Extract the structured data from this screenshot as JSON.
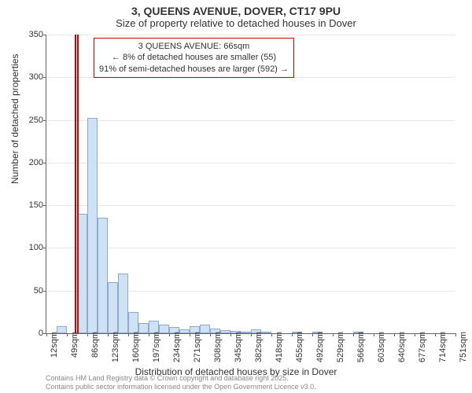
{
  "title": "3, QUEENS AVENUE, DOVER, CT17 9PU",
  "subtitle": "Size of property relative to detached houses in Dover",
  "ylabel": "Number of detached properties",
  "xlabel": "Distribution of detached houses by size in Dover",
  "chart": {
    "type": "histogram",
    "ylim": [
      0,
      350
    ],
    "ytick_step": 50,
    "yticks": [
      0,
      50,
      100,
      150,
      200,
      250,
      300,
      350
    ],
    "x_start": 12,
    "x_bin_width": 18.5,
    "x_tick_labels": [
      "12sqm",
      "49sqm",
      "86sqm",
      "123sqm",
      "160sqm",
      "197sqm",
      "234sqm",
      "271sqm",
      "308sqm",
      "345sqm",
      "382sqm",
      "418sqm",
      "455sqm",
      "492sqm",
      "529sqm",
      "566sqm",
      "603sqm",
      "640sqm",
      "677sqm",
      "714sqm",
      "751sqm"
    ],
    "x_tick_positions_bins": [
      0,
      2,
      4,
      6,
      8,
      10,
      12,
      14,
      16,
      18,
      20,
      22,
      24,
      26,
      28,
      30,
      32,
      34,
      36,
      38,
      40
    ],
    "values": [
      0,
      8,
      0,
      140,
      252,
      135,
      60,
      70,
      25,
      12,
      15,
      10,
      7,
      5,
      8,
      10,
      6,
      4,
      3,
      2,
      5,
      2,
      0,
      0,
      1,
      0,
      1,
      0,
      0,
      0,
      2,
      0,
      0,
      0,
      0,
      0,
      0,
      0,
      0,
      0
    ],
    "bar_fill": "#cfe2f3",
    "bar_border": "#8faad0",
    "grid_color": "#e8e8e8",
    "axis_color": "#666666",
    "marker_value": 66,
    "marker_color": "#cc0000",
    "background_color": "#ffffff"
  },
  "annotation": {
    "lines": [
      "3 QUEENS AVENUE: 66sqm",
      "← 8% of detached houses are smaller (55)",
      "91% of semi-detached houses are larger (592) →"
    ],
    "border_color": "#cc0000"
  },
  "footer": {
    "line1": "Contains HM Land Registry data © Crown copyright and database right 2025.",
    "line2": "Contains public sector information licensed under the Open Government Licence v3.0."
  }
}
